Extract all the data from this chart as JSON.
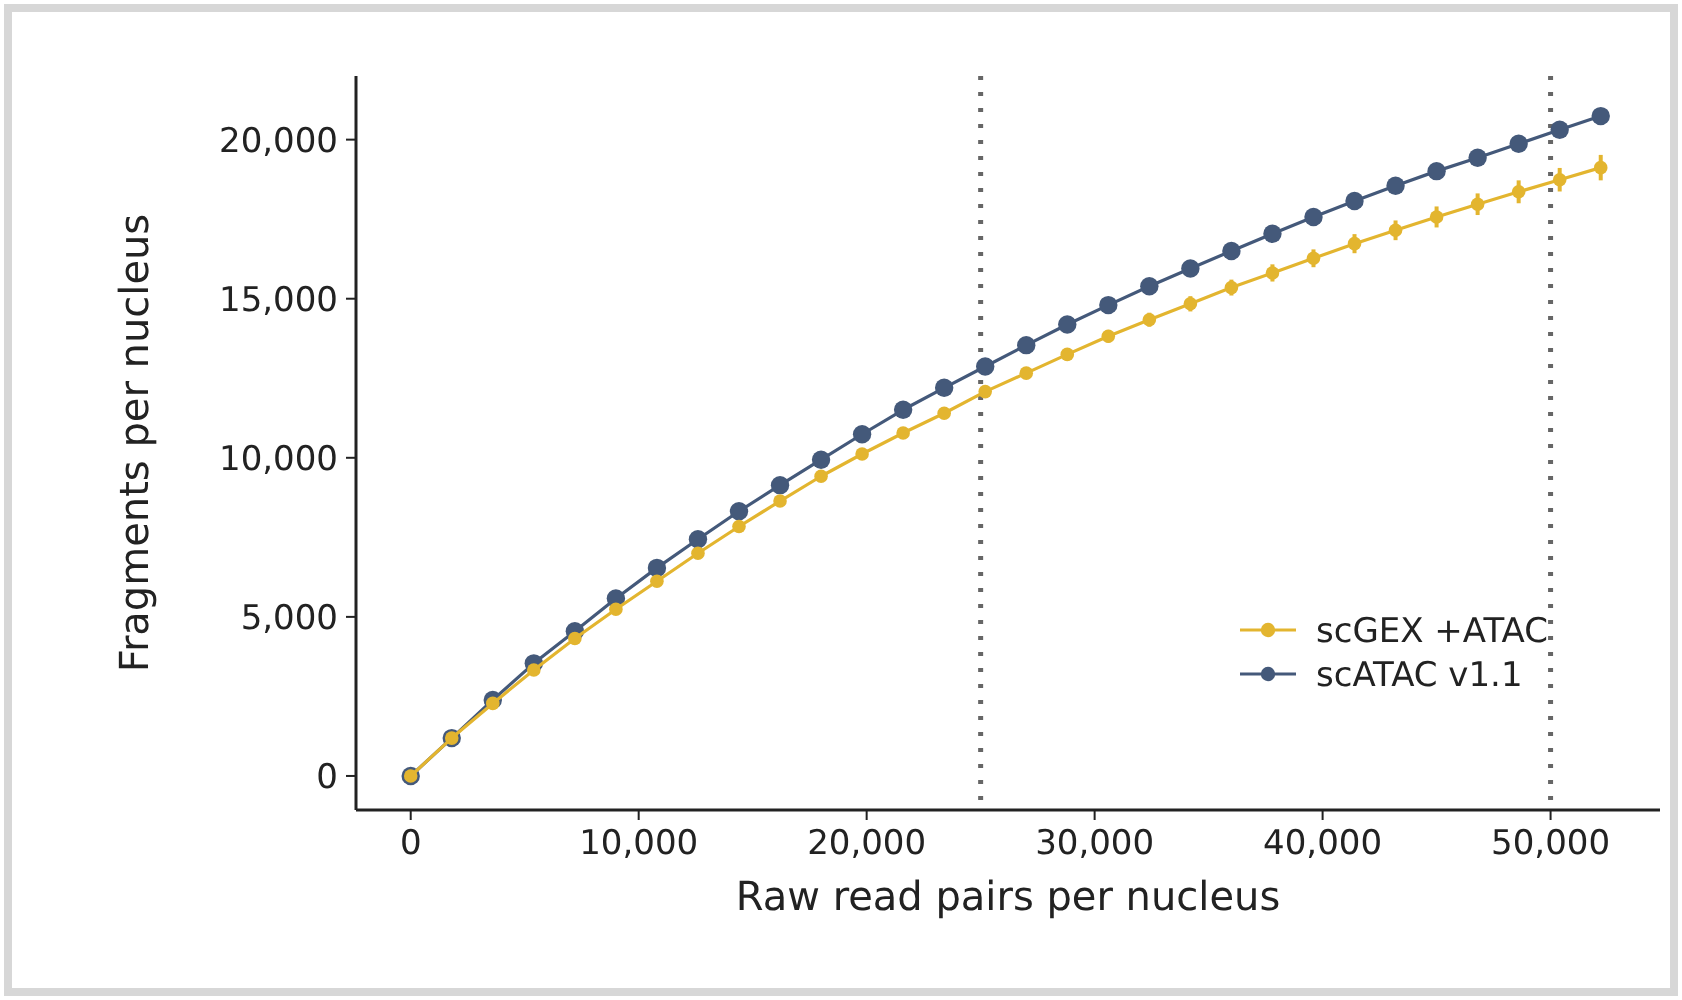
{
  "chart_data": {
    "type": "line",
    "xlabel": "Raw read pairs per nucleus",
    "ylabel": "Fragments per nucleus",
    "x": [
      0,
      1800,
      3600,
      5400,
      7200,
      9000,
      10800,
      12600,
      14400,
      16200,
      18000,
      19800,
      21600,
      23400,
      25200,
      27000,
      28800,
      30600,
      32400,
      34200,
      36000,
      37800,
      39600,
      41400,
      43200,
      45000,
      46800,
      48600,
      50400,
      52200
    ],
    "series": [
      {
        "name": "scGEX +ATAC",
        "color": "#e3b52f",
        "values": [
          0,
          1190,
          2280,
          3330,
          4320,
          5240,
          6120,
          7000,
          7840,
          8640,
          9420,
          10120,
          10780,
          11400,
          12080,
          12660,
          13250,
          13820,
          14340,
          14840,
          15350,
          15810,
          16270,
          16730,
          17150,
          17570,
          17970,
          18360,
          18740,
          19120
        ],
        "errors": [
          null,
          null,
          null,
          null,
          null,
          null,
          null,
          null,
          null,
          null,
          null,
          null,
          null,
          null,
          150,
          170,
          190,
          200,
          220,
          240,
          250,
          270,
          280,
          300,
          310,
          330,
          340,
          360,
          370,
          400
        ]
      },
      {
        "name": "scATAC v1.1",
        "color": "#44597a",
        "values": [
          0,
          1190,
          2390,
          3540,
          4550,
          5580,
          6540,
          7440,
          8320,
          9140,
          9940,
          10740,
          11510,
          12200,
          12870,
          13540,
          14190,
          14800,
          15390,
          15950,
          16500,
          17040,
          17570,
          18070,
          18550,
          19010,
          19430,
          19870,
          20310,
          20740
        ]
      }
    ],
    "xlim": [
      -2400,
      54800
    ],
    "ylim": [
      -1070,
      22000
    ],
    "xticks": [
      {
        "value": 0,
        "label": "0"
      },
      {
        "value": 10000,
        "label": "10,000"
      },
      {
        "value": 20000,
        "label": "20,000"
      },
      {
        "value": 30000,
        "label": "30,000"
      },
      {
        "value": 40000,
        "label": "40,000"
      },
      {
        "value": 50000,
        "label": "50,000"
      }
    ],
    "yticks": [
      {
        "value": 0,
        "label": "0"
      },
      {
        "value": 5000,
        "label": "5,000"
      },
      {
        "value": 10000,
        "label": "10,000"
      },
      {
        "value": 15000,
        "label": "15,000"
      },
      {
        "value": 20000,
        "label": "20,000"
      }
    ],
    "ref_lines": [
      {
        "axis": "x",
        "value": 25000,
        "color": "#666666",
        "line_style": "dotted"
      },
      {
        "axis": "x",
        "value": 50000,
        "color": "#666666",
        "line_style": "dotted"
      }
    ],
    "legend": "bottom right",
    "marker": "circle",
    "line_style": "solid",
    "grid": false
  }
}
